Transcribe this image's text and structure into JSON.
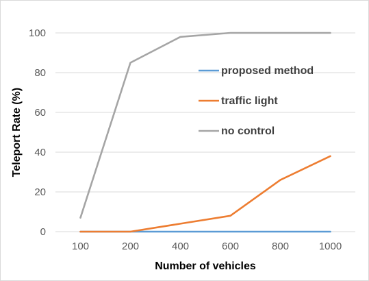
{
  "chart_data": {
    "type": "line",
    "title": "",
    "xlabel": "Number of vehicles",
    "ylabel": "Teleport Rate (%)",
    "categories": [
      "100",
      "200",
      "400",
      "600",
      "800",
      "1000"
    ],
    "ylim": [
      0,
      100
    ],
    "yticks": [
      "0",
      "20",
      "40",
      "60",
      "80",
      "100"
    ],
    "grid": true,
    "legend_position": "inside-right",
    "series": [
      {
        "name": "proposed method",
        "color": "#5B9BD5",
        "values": [
          0,
          0,
          0,
          0,
          0,
          0
        ]
      },
      {
        "name": "traffic light",
        "color": "#ED7D31",
        "values": [
          0,
          0,
          4,
          8,
          26,
          38
        ]
      },
      {
        "name": "no control",
        "color": "#A5A5A5",
        "values": [
          7,
          85,
          98,
          100,
          100,
          100
        ]
      }
    ]
  }
}
